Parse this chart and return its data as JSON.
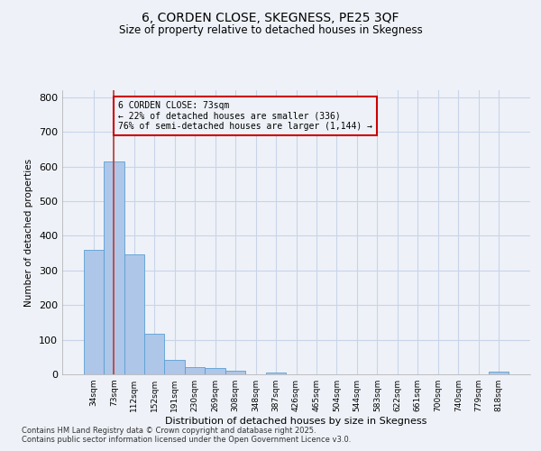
{
  "title1": "6, CORDEN CLOSE, SKEGNESS, PE25 3QF",
  "title2": "Size of property relative to detached houses in Skegness",
  "xlabel": "Distribution of detached houses by size in Skegness",
  "ylabel": "Number of detached properties",
  "bar_labels": [
    "34sqm",
    "73sqm",
    "112sqm",
    "152sqm",
    "191sqm",
    "230sqm",
    "269sqm",
    "308sqm",
    "348sqm",
    "387sqm",
    "426sqm",
    "465sqm",
    "504sqm",
    "544sqm",
    "583sqm",
    "622sqm",
    "661sqm",
    "700sqm",
    "740sqm",
    "779sqm",
    "818sqm"
  ],
  "bar_values": [
    360,
    615,
    345,
    118,
    42,
    20,
    18,
    10,
    0,
    5,
    0,
    0,
    0,
    0,
    0,
    0,
    0,
    0,
    0,
    0,
    7
  ],
  "bar_color": "#aec6e8",
  "bar_edge_color": "#5a9fd4",
  "vline_x_index": 1,
  "vline_color": "#c0392b",
  "annotation_text": "6 CORDEN CLOSE: 73sqm\n← 22% of detached houses are smaller (336)\n76% of semi-detached houses are larger (1,144) →",
  "annotation_box_color": "#cc0000",
  "ylim": [
    0,
    820
  ],
  "yticks": [
    0,
    100,
    200,
    300,
    400,
    500,
    600,
    700,
    800
  ],
  "grid_color": "#c8d4e8",
  "bg_color": "#eef2f8",
  "footer1": "Contains HM Land Registry data © Crown copyright and database right 2025.",
  "footer2": "Contains public sector information licensed under the Open Government Licence v3.0."
}
